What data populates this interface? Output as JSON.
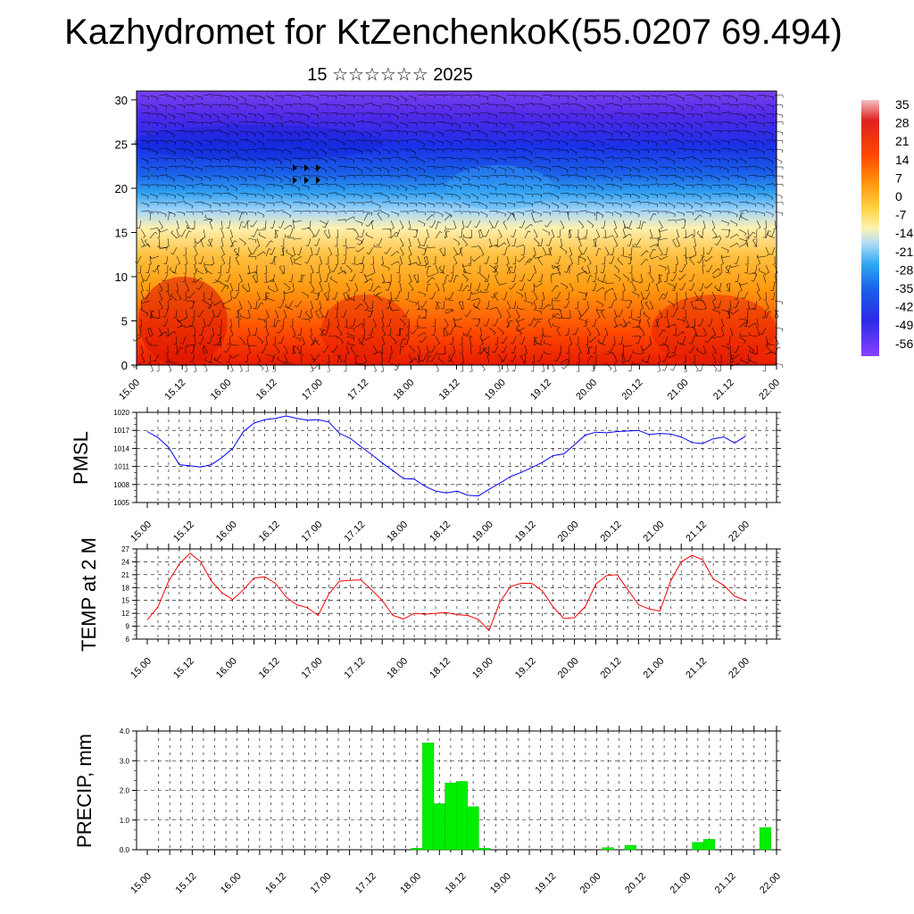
{
  "title": "Kazhydromet for KtZenchenkoK(55.0207 69.494)",
  "subtitle": "15 ☆☆☆☆☆☆ 2025",
  "colorbar": {
    "labels": [
      "35",
      "28",
      "21",
      "14",
      "7",
      "0",
      "-7",
      "-14",
      "-21",
      "-28",
      "-35",
      "-42",
      "-49",
      "-56"
    ],
    "colors": [
      "#f4c6c6",
      "#e01010",
      "#ff3a00",
      "#ff7a00",
      "#ffa020",
      "#ffcf40",
      "#fff0a0",
      "#c0e4ff",
      "#3ab0f0",
      "#1070e0",
      "#1a3cf0",
      "#2a20e8",
      "#5a20e8",
      "#8a40ff"
    ]
  },
  "time_ticks": [
    "15.00",
    "15.12",
    "16.00",
    "16.12",
    "17.00",
    "17.12",
    "18.00",
    "18.12",
    "19.00",
    "19.12",
    "20.00",
    "20.12",
    "21.00",
    "21.12",
    "22.00"
  ],
  "chart_data": [
    {
      "type": "heatmap",
      "x": "time_ticks",
      "y_ticks": [
        0,
        5,
        10,
        15,
        20,
        25,
        30
      ],
      "ylim": [
        0,
        31
      ],
      "overlay": "wind barbs"
    },
    {
      "type": "line",
      "ylabel": "PMSL",
      "ylim": [
        1005,
        1020
      ],
      "y_ticks": [
        1005,
        1008,
        1011,
        1014,
        1017,
        1020
      ],
      "series": [
        {
          "color": "#0000ff",
          "values": [
            1016.8,
            1015.8,
            1014.2,
            1011.3,
            1011.1,
            1010.9,
            1011.3,
            1012.5,
            1014.0,
            1016.8,
            1018.2,
            1018.8,
            1019.0,
            1019.4,
            1019.0,
            1018.7,
            1018.8,
            1018.4,
            1016.5,
            1015.7,
            1014.3,
            1013.0,
            1011.6,
            1010.3,
            1009.0,
            1008.9,
            1007.7,
            1006.9,
            1006.6,
            1006.9,
            1006.2,
            1006.1,
            1007.2,
            1008.2,
            1009.3,
            1010.0,
            1010.8,
            1011.7,
            1012.8,
            1013.1,
            1014.6,
            1016.2,
            1016.7,
            1016.6,
            1016.8,
            1016.9,
            1017.0,
            1016.3,
            1016.5,
            1016.4,
            1015.9,
            1015.0,
            1014.8,
            1015.6,
            1015.9,
            1014.9,
            1016.0
          ]
        }
      ]
    },
    {
      "type": "line",
      "ylabel": "TEMP at 2 M",
      "ylim": [
        6,
        27
      ],
      "y_ticks": [
        6,
        9,
        12,
        15,
        18,
        21,
        24,
        27
      ],
      "series": [
        {
          "color": "#ff0000",
          "values": [
            10.5,
            13.5,
            19.5,
            23.5,
            26.0,
            24.0,
            19.5,
            16.8,
            15.2,
            17.5,
            20.2,
            20.5,
            19.0,
            15.8,
            14.0,
            13.3,
            11.5,
            16.5,
            19.5,
            19.7,
            19.8,
            17.5,
            15.0,
            11.5,
            10.7,
            12.0,
            11.8,
            12.0,
            12.2,
            11.7,
            11.5,
            10.6,
            8.0,
            14.5,
            18.2,
            19.0,
            19.0,
            17.2,
            13.5,
            10.8,
            11.0,
            13.5,
            18.8,
            20.8,
            21.0,
            17.5,
            14.0,
            13.0,
            12.5,
            19.5,
            24.0,
            25.5,
            24.5,
            20.0,
            18.5,
            16.0,
            15.0
          ]
        }
      ]
    },
    {
      "type": "bar",
      "ylabel": "PRECIP, mm",
      "ylim": [
        0,
        4
      ],
      "y_tick_labels": [
        "0.0",
        "1.0",
        "2.0",
        "3.0",
        "4.0"
      ],
      "series": [
        {
          "color": "#00ee00",
          "bars": [
            {
              "t": 18.0,
              "v": 0.05
            },
            {
              "t": 18.125,
              "v": 3.6
            },
            {
              "t": 18.25,
              "v": 1.55
            },
            {
              "t": 18.375,
              "v": 2.25
            },
            {
              "t": 18.5,
              "v": 2.3
            },
            {
              "t": 18.625,
              "v": 1.45
            },
            {
              "t": 18.75,
              "v": 0.05
            },
            {
              "t": 20.125,
              "v": 0.07
            },
            {
              "t": 20.375,
              "v": 0.15
            },
            {
              "t": 21.125,
              "v": 0.25
            },
            {
              "t": 21.25,
              "v": 0.35
            },
            {
              "t": 21.875,
              "v": 0.75
            }
          ]
        }
      ]
    }
  ]
}
